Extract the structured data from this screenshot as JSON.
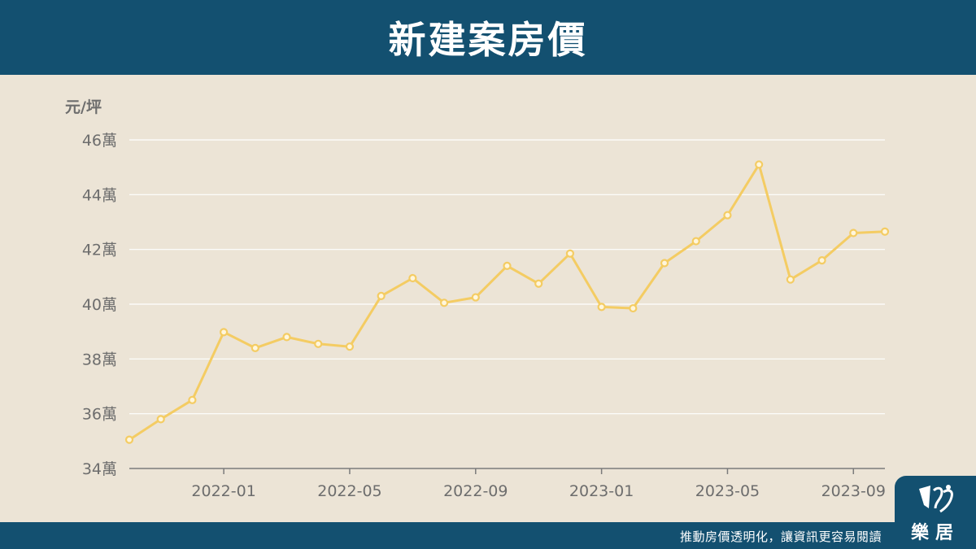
{
  "header": {
    "title": "新建案房價"
  },
  "footer": {
    "slogan": "推動房價透明化，讓資訊更容易閱讀",
    "logo_text": "樂居"
  },
  "colors": {
    "header_bg": "#135070",
    "background": "#ece4d6",
    "line": "#f4cc63",
    "axis_text": "#6d6d6d",
    "grid": "#ffffff"
  },
  "chart_data": {
    "type": "line",
    "title": "新建案房價",
    "ylabel": "元/坪",
    "xlabel": "",
    "ylim": [
      34,
      46
    ],
    "y_tick_values": [
      34,
      36,
      38,
      40,
      42,
      44,
      46
    ],
    "y_tick_labels": [
      "34萬",
      "36萬",
      "38萬",
      "40萬",
      "42萬",
      "44萬",
      "46萬"
    ],
    "x_tick_labels": [
      "2022-01",
      "2022-05",
      "2022-09",
      "2023-01",
      "2023-05",
      "2023-09"
    ],
    "x_tick_positions": [
      "2022-01",
      "2022-05",
      "2022-09",
      "2023-01",
      "2023-05",
      "2023-09"
    ],
    "grid": true,
    "series": [
      {
        "x": [
          "2021-10",
          "2021-11",
          "2021-12",
          "2022-01",
          "2022-02",
          "2022-03",
          "2022-04",
          "2022-05",
          "2022-06",
          "2022-07",
          "2022-08",
          "2022-09",
          "2022-10",
          "2022-11",
          "2022-12",
          "2023-01",
          "2023-02",
          "2023-03",
          "2023-04",
          "2023-05",
          "2023-06",
          "2023-07",
          "2023-08",
          "2023-09",
          "2023-10"
        ],
        "values": [
          35.05,
          35.8,
          36.5,
          38.98,
          38.4,
          38.8,
          38.55,
          38.45,
          40.3,
          40.95,
          40.05,
          40.25,
          41.4,
          40.75,
          41.85,
          39.9,
          39.85,
          41.5,
          42.3,
          43.25,
          45.1,
          40.9,
          41.6,
          42.6,
          42.65
        ]
      }
    ]
  }
}
